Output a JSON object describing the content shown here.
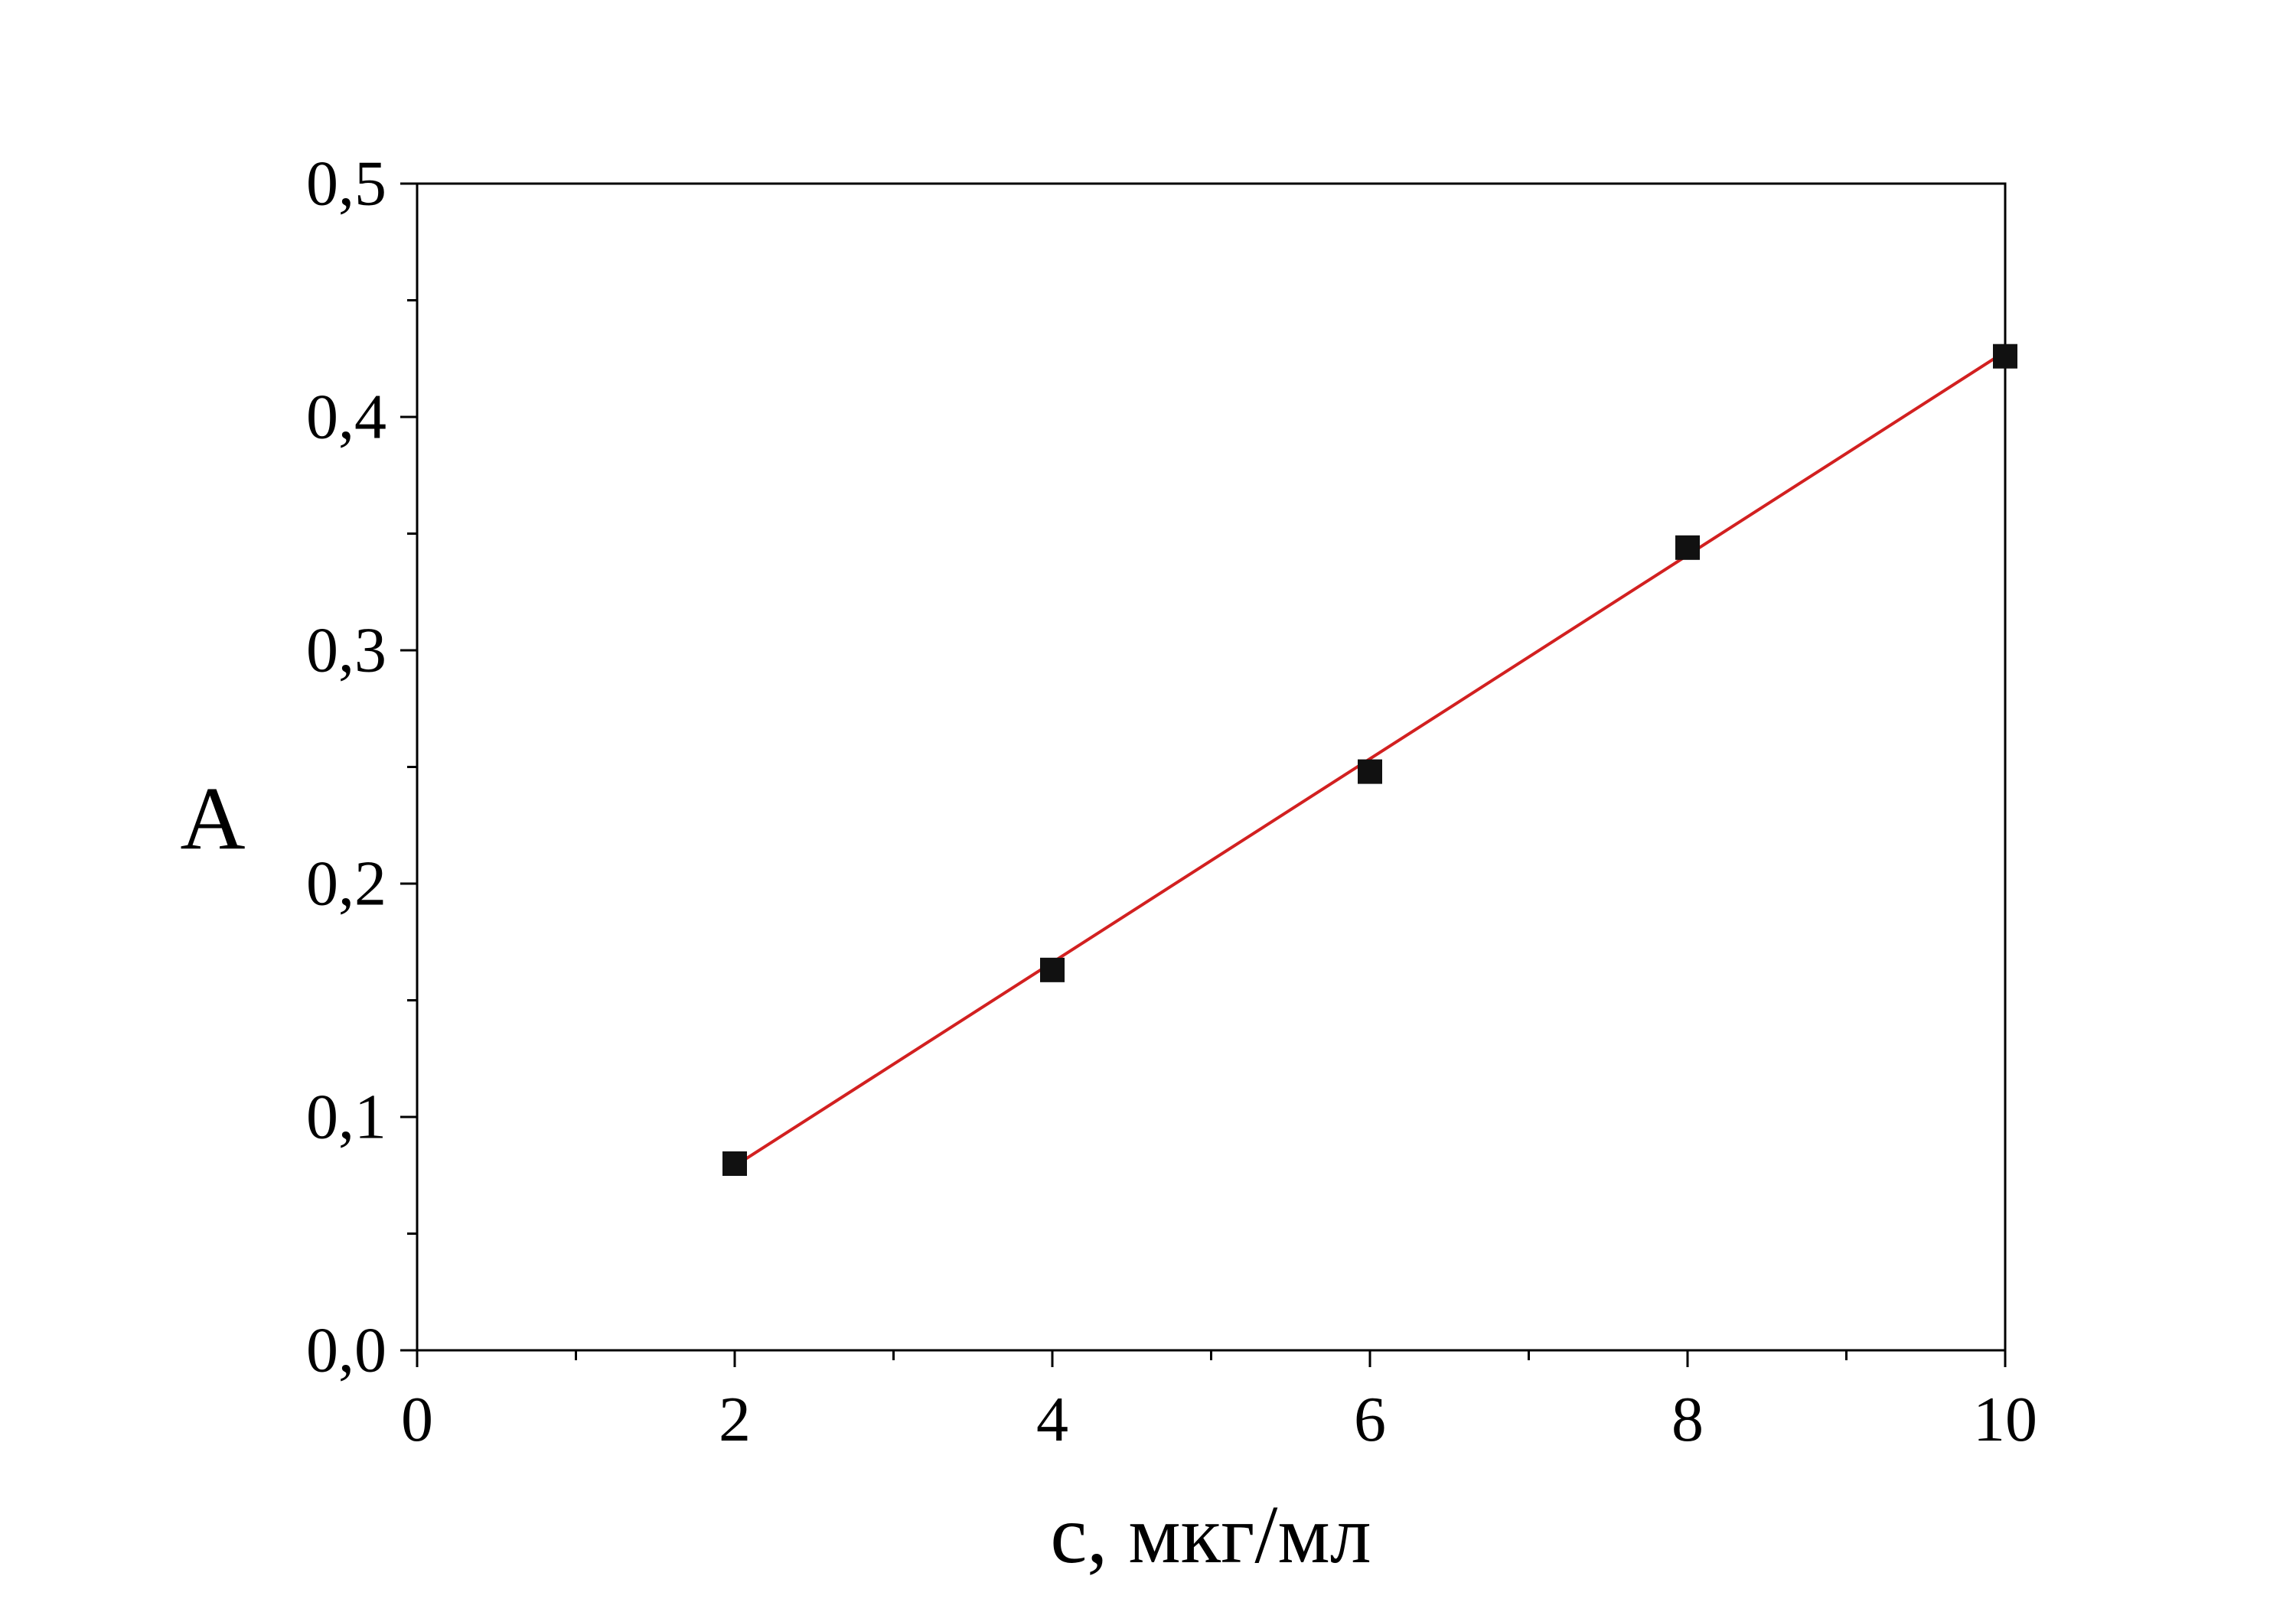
{
  "chart_data": {
    "type": "scatter",
    "title": "",
    "xlabel": "с, мкг/мл",
    "ylabel": "А",
    "xlim": [
      0,
      10
    ],
    "ylim": [
      0.0,
      0.5
    ],
    "x_ticks": [
      0,
      2,
      4,
      6,
      8,
      10
    ],
    "x_minor_step": 1,
    "y_tick_values": [
      0.0,
      0.1,
      0.2,
      0.3,
      0.4,
      0.5
    ],
    "y_tick_labels": [
      "0,0",
      "0,1",
      "0,2",
      "0,3",
      "0,4",
      "0,5"
    ],
    "y_minor_step": 0.05,
    "decimal_separator": ",",
    "grid": false,
    "legend": "none",
    "frame": "full-box",
    "colors": {
      "axis": "#000000",
      "marker": "#111111",
      "fit_line": "#d22020",
      "background": "#ffffff"
    },
    "series": [
      {
        "name": "absorbance-points",
        "kind": "scatter",
        "marker": "square",
        "color": "#111111",
        "x": [
          2,
          4,
          6,
          8,
          10
        ],
        "y": [
          0.08,
          0.163,
          0.248,
          0.344,
          0.426
        ]
      },
      {
        "name": "linear-fit",
        "kind": "line",
        "color": "#d22020",
        "x": [
          2,
          10
        ],
        "y": [
          0.079,
          0.428
        ]
      }
    ]
  }
}
